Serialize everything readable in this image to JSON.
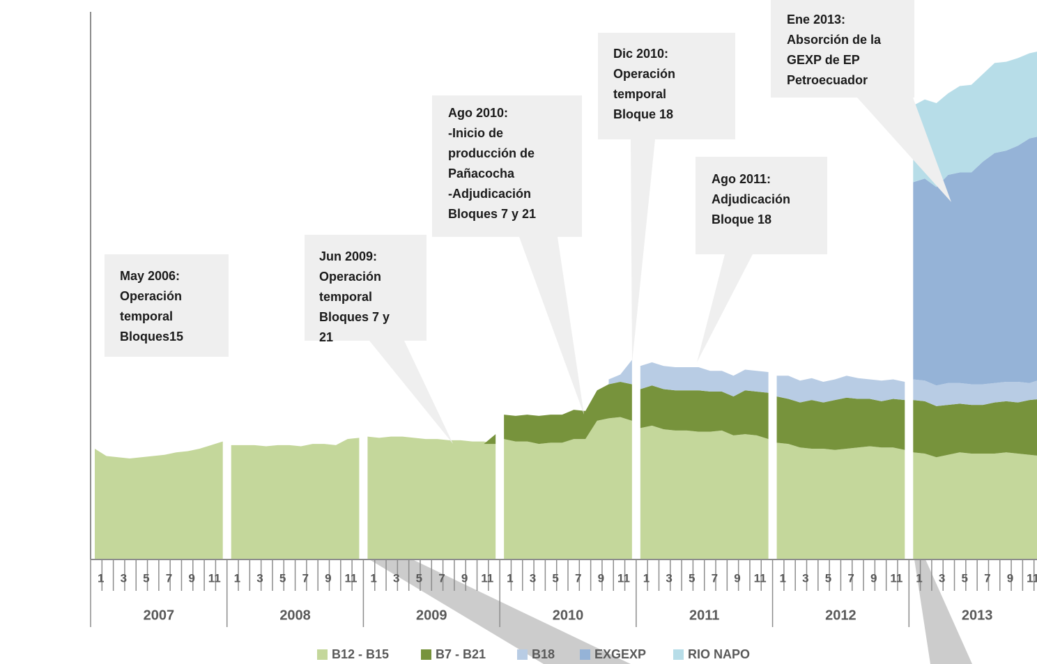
{
  "chart_data": {
    "type": "stacked_area",
    "categories": [
      "1",
      null,
      "3",
      null,
      "5",
      null,
      "7",
      null,
      "9",
      null,
      "11",
      null,
      "1",
      null,
      "3",
      null,
      "5",
      null,
      "7",
      null,
      "9",
      null,
      "11",
      null,
      "1",
      null,
      "3",
      null,
      "5",
      null,
      "7",
      null,
      "9",
      null,
      "11",
      null,
      "1",
      null,
      "3",
      null,
      "5",
      null,
      "7",
      null,
      "9",
      null,
      "11",
      null,
      "1",
      null,
      "3",
      null,
      "5",
      null,
      "7",
      null,
      "9",
      null,
      "11",
      null,
      "1",
      null,
      "3",
      null,
      "5",
      null,
      "7",
      null,
      "9",
      null,
      "11",
      null,
      "1",
      null,
      "3",
      null,
      "5",
      null,
      "7",
      null,
      "9",
      null,
      "11",
      null
    ],
    "groups": [
      "2007",
      "2008",
      "2009",
      "2010",
      "2011",
      "2012",
      "2013"
    ],
    "series": [
      {
        "name": "B12 - B15",
        "color": "#c4d79b",
        "values": [
          91000,
          85000,
          84000,
          83000,
          84000,
          85000,
          86000,
          88000,
          89000,
          91000,
          94000,
          97000,
          94000,
          94000,
          94000,
          93000,
          94000,
          94000,
          93000,
          95000,
          95000,
          94000,
          99000,
          100000,
          101000,
          100000,
          101000,
          101000,
          100000,
          99000,
          99000,
          98000,
          98000,
          97000,
          97000,
          95000,
          99000,
          97000,
          97000,
          95000,
          96000,
          96000,
          99000,
          99000,
          114000,
          116000,
          117000,
          114000,
          108000,
          110000,
          107000,
          106000,
          106000,
          105000,
          105000,
          106000,
          102000,
          103000,
          102000,
          99000,
          96000,
          95000,
          92000,
          91000,
          91000,
          90000,
          91000,
          92000,
          93000,
          92000,
          92000,
          90000,
          88000,
          87000,
          84000,
          86000,
          88000,
          87000,
          87000,
          87000,
          88000,
          87000,
          86000,
          85000
        ]
      },
      {
        "name": "B7 - B21",
        "color": "#77933c",
        "values": [
          null,
          null,
          null,
          null,
          null,
          null,
          null,
          null,
          null,
          null,
          null,
          null,
          null,
          null,
          null,
          null,
          null,
          null,
          null,
          null,
          null,
          null,
          null,
          null,
          null,
          null,
          null,
          null,
          null,
          null,
          null,
          null,
          null,
          null,
          null,
          8000,
          20000,
          21000,
          22000,
          23000,
          23000,
          23000,
          24000,
          23000,
          25000,
          28000,
          29000,
          30000,
          32000,
          33000,
          33000,
          33000,
          33000,
          34000,
          33000,
          32000,
          32000,
          36000,
          36000,
          38000,
          38000,
          37000,
          37000,
          40000,
          38000,
          41000,
          42000,
          40000,
          39000,
          38000,
          40000,
          41000,
          43000,
          43000,
          42000,
          41000,
          40000,
          40000,
          40000,
          42000,
          42000,
          42000,
          45000,
          47000
        ]
      },
      {
        "name": "B18",
        "color": "#b8cce4",
        "values": [
          null,
          null,
          null,
          null,
          null,
          null,
          null,
          null,
          null,
          null,
          null,
          null,
          null,
          null,
          null,
          null,
          null,
          null,
          null,
          null,
          null,
          null,
          null,
          null,
          null,
          null,
          null,
          null,
          null,
          null,
          null,
          null,
          null,
          null,
          null,
          null,
          null,
          null,
          null,
          null,
          null,
          null,
          null,
          null,
          null,
          4000,
          6000,
          20000,
          19000,
          19000,
          19000,
          19000,
          19000,
          19000,
          17000,
          17000,
          17000,
          17000,
          17000,
          17000,
          17000,
          19000,
          18000,
          18000,
          17000,
          17000,
          18000,
          17000,
          16000,
          17000,
          16000,
          15000,
          17000,
          17000,
          17000,
          18000,
          17000,
          17000,
          17000,
          16000,
          16000,
          17000,
          14000,
          16000
        ]
      },
      {
        "name": "EXGEXP",
        "color": "#95b3d7",
        "values": [
          null,
          null,
          null,
          null,
          null,
          null,
          null,
          null,
          null,
          null,
          null,
          null,
          null,
          null,
          null,
          null,
          null,
          null,
          null,
          null,
          null,
          null,
          null,
          null,
          null,
          null,
          null,
          null,
          null,
          null,
          null,
          null,
          null,
          null,
          null,
          null,
          null,
          null,
          null,
          null,
          null,
          null,
          null,
          null,
          null,
          null,
          null,
          null,
          null,
          null,
          null,
          null,
          null,
          null,
          null,
          null,
          null,
          null,
          null,
          null,
          null,
          null,
          null,
          null,
          null,
          null,
          null,
          null,
          null,
          null,
          null,
          null,
          162000,
          166000,
          163000,
          171000,
          173000,
          174000,
          183000,
          189000,
          190000,
          194000,
          201000,
          200000
        ]
      },
      {
        "name": "RIO NAPO",
        "color": "#b7dde8",
        "values": [
          null,
          null,
          null,
          null,
          null,
          null,
          null,
          null,
          null,
          null,
          null,
          null,
          null,
          null,
          null,
          null,
          null,
          null,
          null,
          null,
          null,
          null,
          null,
          null,
          null,
          null,
          null,
          null,
          null,
          null,
          null,
          null,
          null,
          null,
          null,
          null,
          null,
          null,
          null,
          null,
          null,
          null,
          null,
          null,
          null,
          null,
          null,
          null,
          null,
          null,
          null,
          null,
          null,
          null,
          null,
          null,
          null,
          null,
          null,
          null,
          null,
          null,
          null,
          null,
          null,
          null,
          null,
          null,
          null,
          null,
          null,
          null,
          63000,
          65000,
          69000,
          67000,
          71000,
          72000,
          72000,
          74000,
          73000,
          72000,
          70000,
          70000
        ]
      }
    ],
    "ylim": [
      0,
      450000
    ],
    "yticks": [
      0,
      50000,
      100000,
      150000,
      200000,
      250000,
      300000,
      350000,
      400000,
      450000
    ],
    "grid": true,
    "annotations": [
      {
        "lines": [
          "May 2006:",
          "Operación",
          "temporal",
          "Bloques15"
        ]
      },
      {
        "lines": [
          "Jun 2009:",
          "Operación",
          "temporal",
          "Bloques 7 y",
          "21"
        ]
      },
      {
        "lines": [
          "Ago 2010:",
          "-Inicio de",
          "producción de",
          "Pañacocha",
          "-Adjudicación",
          "Bloques 7 y 21"
        ]
      },
      {
        "lines": [
          "Dic 2010:",
          "Operación",
          "temporal",
          "Bloque 18"
        ]
      },
      {
        "lines": [
          "Ago 2011:",
          "Adjudicación",
          "Bloque 18"
        ]
      },
      {
        "lines": [
          "Ene 2013:",
          "Absorción de la",
          "GEXP de EP",
          "Petroecuador"
        ]
      }
    ]
  }
}
